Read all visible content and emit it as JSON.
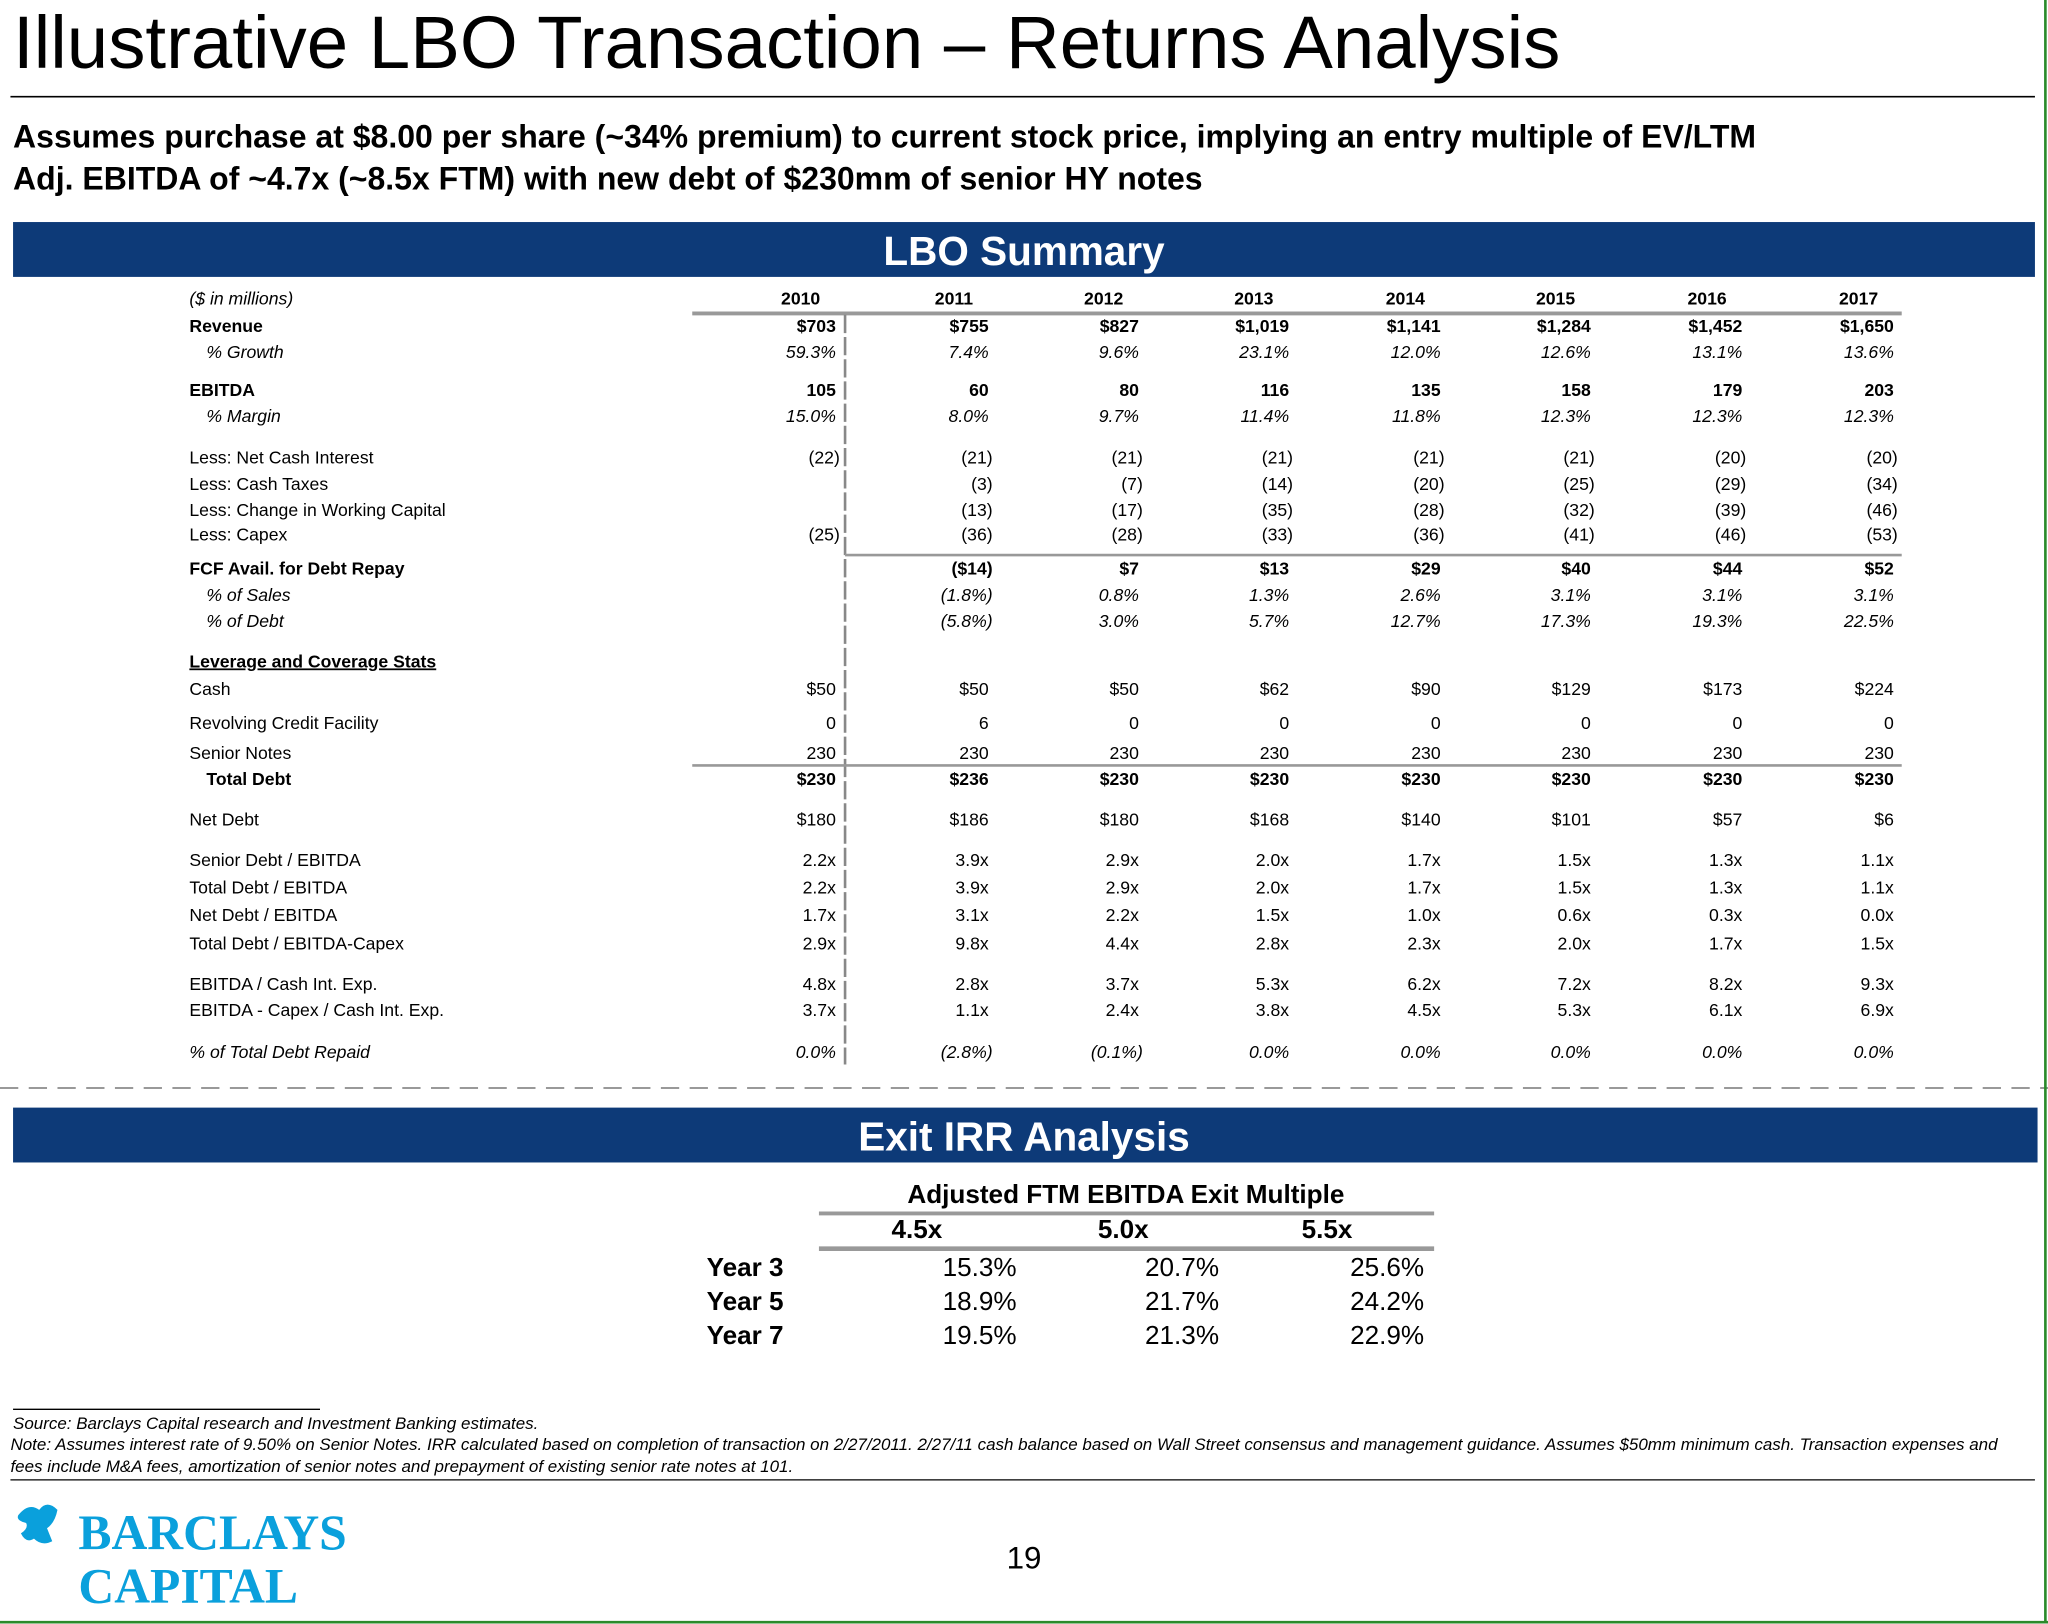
{
  "header": {
    "title": "Illustrative LBO Transaction – Returns Analysis",
    "subtitle_lines": [
      "Assumes purchase at $8.00 per share (~34% premium) to current stock price, implying an entry multiple of EV/LTM",
      "Adj. EBITDA of ~4.7x (~8.5x FTM) with new debt of $230mm of senior HY notes"
    ]
  },
  "lbo": {
    "header": "LBO Summary",
    "units": "($ in millions)",
    "years": [
      "2010",
      "2011",
      "2012",
      "2013",
      "2014",
      "2015",
      "2016",
      "2017"
    ],
    "rows": [
      {
        "label": "Revenue",
        "values": [
          "$703",
          "$755",
          "$827",
          "$1,019",
          "$1,141",
          "$1,284",
          "$1,452",
          "$1,650"
        ]
      },
      {
        "label": "% Growth",
        "values": [
          "59.3%",
          "7.4%",
          "9.6%",
          "23.1%",
          "12.0%",
          "12.6%",
          "13.1%",
          "13.6%"
        ]
      },
      {
        "label": "EBITDA",
        "values": [
          "105",
          "60",
          "80",
          "116",
          "135",
          "158",
          "179",
          "203"
        ]
      },
      {
        "label": "% Margin",
        "values": [
          "15.0%",
          "8.0%",
          "9.7%",
          "11.4%",
          "11.8%",
          "12.3%",
          "12.3%",
          "12.3%"
        ]
      },
      {
        "label": "Less: Net Cash Interest",
        "values": [
          "(22)",
          "(21)",
          "(21)",
          "(21)",
          "(21)",
          "(21)",
          "(20)",
          "(20)"
        ]
      },
      {
        "label": "Less: Cash Taxes",
        "values": [
          null,
          "(3)",
          "(7)",
          "(14)",
          "(20)",
          "(25)",
          "(29)",
          "(34)"
        ]
      },
      {
        "label": "Less: Change in Working Capital",
        "values": [
          null,
          "(13)",
          "(17)",
          "(35)",
          "(28)",
          "(32)",
          "(39)",
          "(46)"
        ]
      },
      {
        "label": "Less: Capex",
        "values": [
          "(25)",
          "(36)",
          "(28)",
          "(33)",
          "(36)",
          "(41)",
          "(46)",
          "(53)"
        ]
      },
      {
        "label": "FCF Avail. for Debt Repay",
        "values": [
          null,
          "($14)",
          "$7",
          "$13",
          "$29",
          "$40",
          "$44",
          "$52"
        ]
      },
      {
        "label": "% of Sales",
        "values": [
          null,
          "(1.8%)",
          "0.8%",
          "1.3%",
          "2.6%",
          "3.1%",
          "3.1%",
          "3.1%"
        ]
      },
      {
        "label": "% of Debt",
        "values": [
          null,
          "(5.8%)",
          "3.0%",
          "5.7%",
          "12.7%",
          "17.3%",
          "19.3%",
          "22.5%"
        ]
      },
      {
        "label": "Leverage and Coverage Stats"
      },
      {
        "label": "Cash",
        "values": [
          "$50",
          "$50",
          "$50",
          "$62",
          "$90",
          "$129",
          "$173",
          "$224"
        ]
      },
      {
        "label": "Revolving Credit Facility",
        "values": [
          "0",
          "6",
          "0",
          "0",
          "0",
          "0",
          "0",
          "0"
        ]
      },
      {
        "label": "Senior Notes",
        "values": [
          "230",
          "230",
          "230",
          "230",
          "230",
          "230",
          "230",
          "230"
        ]
      },
      {
        "label": "Total Debt",
        "values": [
          "$230",
          "$236",
          "$230",
          "$230",
          "$230",
          "$230",
          "$230",
          "$230"
        ]
      },
      {
        "label": "Net Debt",
        "values": [
          "$180",
          "$186",
          "$180",
          "$168",
          "$140",
          "$101",
          "$57",
          "$6"
        ]
      },
      {
        "label": "Senior Debt / EBITDA",
        "values": [
          "2.2x",
          "3.9x",
          "2.9x",
          "2.0x",
          "1.7x",
          "1.5x",
          "1.3x",
          "1.1x"
        ]
      },
      {
        "label": "Total Debt / EBITDA",
        "values": [
          "2.2x",
          "3.9x",
          "2.9x",
          "2.0x",
          "1.7x",
          "1.5x",
          "1.3x",
          "1.1x"
        ]
      },
      {
        "label": "Net Debt / EBITDA",
        "values": [
          "1.7x",
          "3.1x",
          "2.2x",
          "1.5x",
          "1.0x",
          "0.6x",
          "0.3x",
          "0.0x"
        ]
      },
      {
        "label": "Total Debt / EBITDA-Capex",
        "values": [
          "2.9x",
          "9.8x",
          "4.4x",
          "2.8x",
          "2.3x",
          "2.0x",
          "1.7x",
          "1.5x"
        ]
      },
      {
        "label": "EBITDA / Cash Int. Exp.",
        "values": [
          "4.8x",
          "2.8x",
          "3.7x",
          "5.3x",
          "6.2x",
          "7.2x",
          "8.2x",
          "9.3x"
        ]
      },
      {
        "label": "EBITDA - Capex / Cash Int. Exp.",
        "values": [
          "3.7x",
          "1.1x",
          "2.4x",
          "3.8x",
          "4.5x",
          "5.3x",
          "6.1x",
          "6.9x"
        ]
      },
      {
        "label": "% of Total Debt Repaid",
        "values": [
          "0.0%",
          "(2.8%)",
          "(0.1%)",
          "0.0%",
          "0.0%",
          "0.0%",
          "0.0%",
          "0.0%"
        ]
      }
    ]
  },
  "irr": {
    "header": "Exit IRR Analysis",
    "caption": "Adjusted FTM EBITDA Exit Multiple",
    "multiples": [
      "4.5x",
      "5.0x",
      "5.5x"
    ],
    "rows": [
      {
        "label": "Year 3",
        "values": [
          "15.3%",
          "20.7%",
          "25.6%"
        ]
      },
      {
        "label": "Year 5",
        "values": [
          "18.9%",
          "21.7%",
          "24.2%"
        ]
      },
      {
        "label": "Year 7",
        "values": [
          "19.5%",
          "21.3%",
          "22.9%"
        ]
      }
    ]
  },
  "footer": {
    "source": "Source:  Barclays Capital research and Investment Banking estimates.",
    "note": "Note: Assumes interest rate of 9.50% on Senior Notes.  IRR calculated based on completion of transaction on 2/27/2011.  2/27/11 cash balance based on Wall Street consensus and management guidance.  Assumes $50mm minimum cash.  Transaction expenses and fees include M&A fees, amortization of senior notes and prepayment of existing senior rate notes at 101.",
    "logo_lines": [
      "BARCLAYS",
      "CAPITAL"
    ],
    "page_number": "19"
  }
}
